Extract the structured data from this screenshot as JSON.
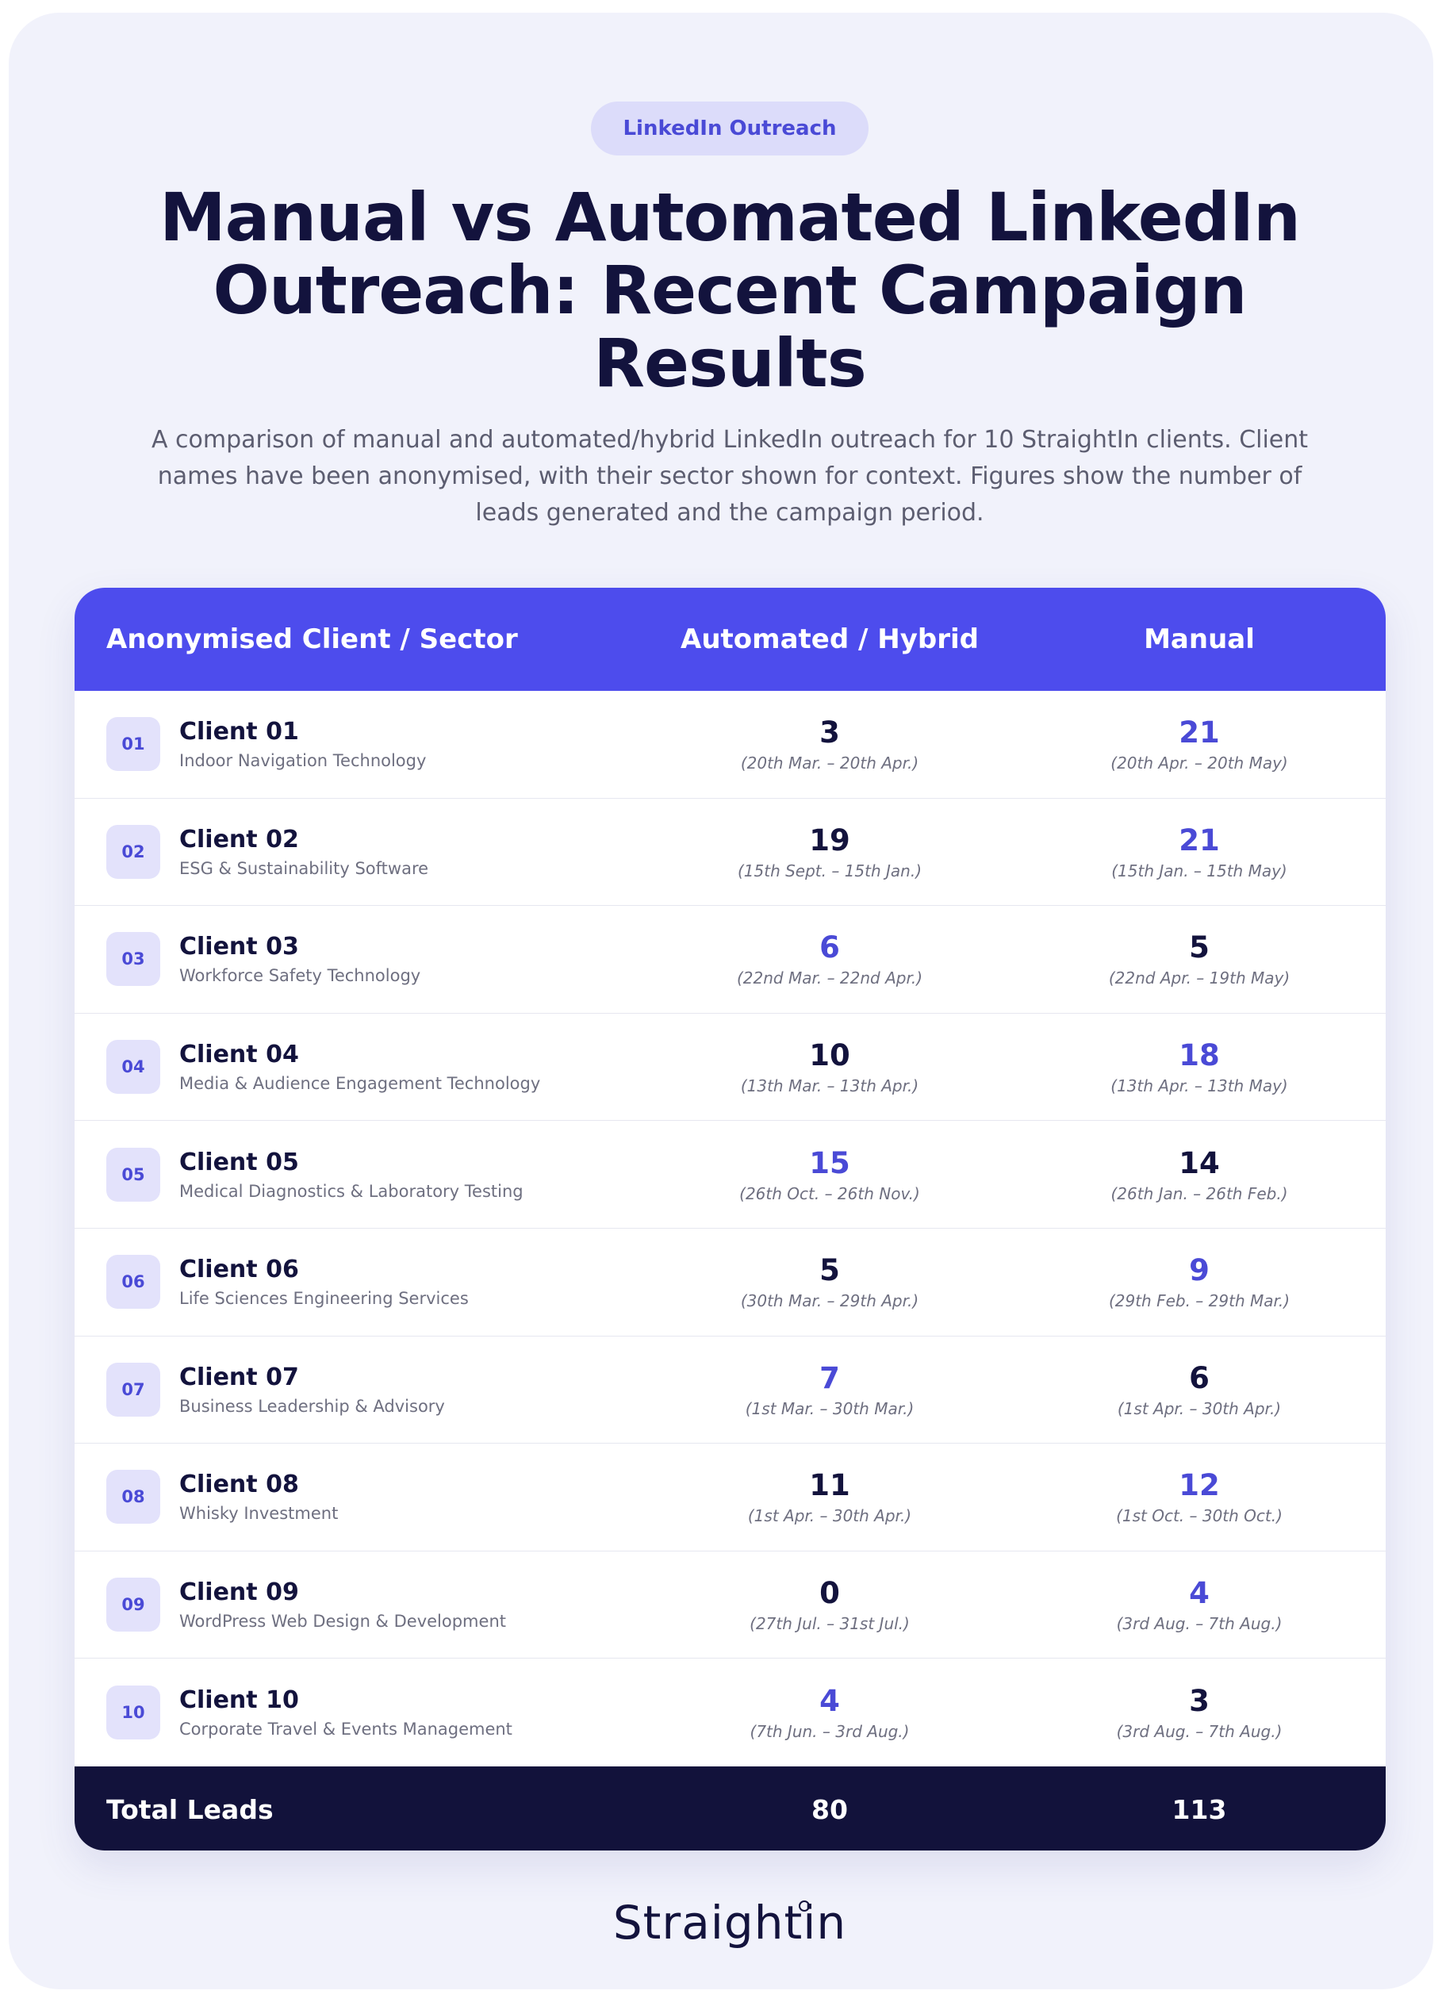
{
  "tag": "LinkedIn Outreach",
  "title": "Manual vs Automated LinkedIn Outreach: Recent Campaign Results",
  "subtitle": "A comparison of manual and automated/hybrid LinkedIn outreach for 10 StraightIn clients. Client names have been anonymised, with their sector shown for context. Figures show the number of leads generated and the campaign period.",
  "table": {
    "headers": [
      "Anonymised Client / Sector",
      "Automated / Hybrid",
      "Manual"
    ],
    "rows": [
      {
        "num": "01",
        "name": "Client 01",
        "sector": "Indoor Navigation Technology",
        "auto": "3",
        "auto_period": "(20th Mar. – 20th Apr.)",
        "manual": "21",
        "manual_period": "(20th Apr. – 20th May)",
        "winner": "manual"
      },
      {
        "num": "02",
        "name": "Client 02",
        "sector": "ESG & Sustainability Software",
        "auto": "19",
        "auto_period": "(15th Sept. – 15th Jan.)",
        "manual": "21",
        "manual_period": "(15th Jan. – 15th May)",
        "winner": "manual"
      },
      {
        "num": "03",
        "name": "Client 03",
        "sector": "Workforce Safety Technology",
        "auto": "6",
        "auto_period": "(22nd Mar. – 22nd Apr.)",
        "manual": "5",
        "manual_period": "(22nd Apr. – 19th May)",
        "winner": "auto"
      },
      {
        "num": "04",
        "name": "Client 04",
        "sector": "Media & Audience Engagement Technology",
        "auto": "10",
        "auto_period": "(13th Mar. – 13th Apr.)",
        "manual": "18",
        "manual_period": "(13th Apr. – 13th May)",
        "winner": "manual"
      },
      {
        "num": "05",
        "name": "Client 05",
        "sector": "Medical Diagnostics & Laboratory Testing",
        "auto": "15",
        "auto_period": "(26th Oct. – 26th Nov.)",
        "manual": "14",
        "manual_period": "(26th Jan. – 26th Feb.)",
        "winner": "auto"
      },
      {
        "num": "06",
        "name": "Client 06",
        "sector": "Life Sciences Engineering Services",
        "auto": "5",
        "auto_period": "(30th Mar. – 29th Apr.)",
        "manual": "9",
        "manual_period": "(29th Feb. – 29th Mar.)",
        "winner": "manual"
      },
      {
        "num": "07",
        "name": "Client 07",
        "sector": "Business Leadership & Advisory",
        "auto": "7",
        "auto_period": "(1st Mar. – 30th Mar.)",
        "manual": "6",
        "manual_period": "(1st Apr. – 30th Apr.)",
        "winner": "auto"
      },
      {
        "num": "08",
        "name": "Client 08",
        "sector": "Whisky Investment",
        "auto": "11",
        "auto_period": "(1st Apr. – 30th Apr.)",
        "manual": "12",
        "manual_period": "(1st Oct. – 30th Oct.)",
        "winner": "manual"
      },
      {
        "num": "09",
        "name": "Client 09",
        "sector": "WordPress Web Design & Development",
        "auto": "0",
        "auto_period": "(27th Jul. – 31st Jul.)",
        "manual": "4",
        "manual_period": "(3rd Aug. – 7th Aug.)",
        "winner": "manual"
      },
      {
        "num": "10",
        "name": "Client 10",
        "sector": "Corporate Travel & Events Management",
        "auto": "4",
        "auto_period": "(7th Jun. – 3rd Aug.)",
        "manual": "3",
        "manual_period": "(3rd Aug. – 7th Aug.)",
        "winner": "auto"
      }
    ],
    "footer": {
      "label": "Total Leads",
      "auto_total": "80",
      "manual_total": "113"
    }
  },
  "logo": "Straightin",
  "colors": {
    "accent": "#4d4ced",
    "dark": "#12123b",
    "background": "#f1f2fb"
  }
}
